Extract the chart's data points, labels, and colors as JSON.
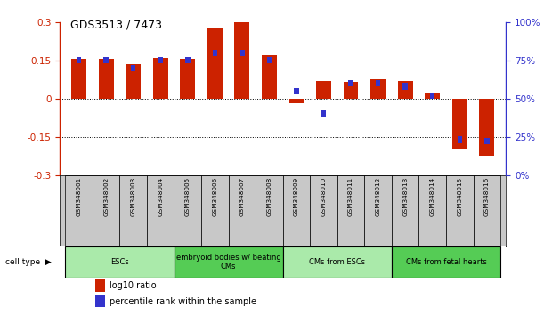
{
  "title": "GDS3513 / 7473",
  "samples": [
    "GSM348001",
    "GSM348002",
    "GSM348003",
    "GSM348004",
    "GSM348005",
    "GSM348006",
    "GSM348007",
    "GSM348008",
    "GSM348009",
    "GSM348010",
    "GSM348011",
    "GSM348012",
    "GSM348013",
    "GSM348014",
    "GSM348015",
    "GSM348016"
  ],
  "log10_ratio": [
    0.155,
    0.155,
    0.135,
    0.16,
    0.155,
    0.275,
    0.3,
    0.17,
    -0.02,
    0.07,
    0.065,
    0.075,
    0.07,
    0.02,
    -0.2,
    -0.225
  ],
  "percentile_rank": [
    75,
    75,
    70,
    75,
    75,
    80,
    80,
    75,
    55,
    40,
    60,
    60,
    58,
    52,
    23,
    22
  ],
  "cell_type_groups": [
    {
      "label": "ESCs",
      "start": 0,
      "end": 3,
      "color": "#AAEAAA"
    },
    {
      "label": "embryoid bodies w/ beating\nCMs",
      "start": 4,
      "end": 7,
      "color": "#55CC55"
    },
    {
      "label": "CMs from ESCs",
      "start": 8,
      "end": 11,
      "color": "#AAEAAA"
    },
    {
      "label": "CMs from fetal hearts",
      "start": 12,
      "end": 15,
      "color": "#55CC55"
    }
  ],
  "red_color": "#CC2200",
  "blue_color": "#3333CC",
  "ylim_left": [
    -0.3,
    0.3
  ],
  "yticks_left": [
    -0.3,
    -0.15,
    0.0,
    0.15,
    0.3
  ],
  "bg_color": "#ffffff",
  "bar_width": 0.55,
  "blue_bar_width": 0.18,
  "blue_bar_height": 0.025
}
